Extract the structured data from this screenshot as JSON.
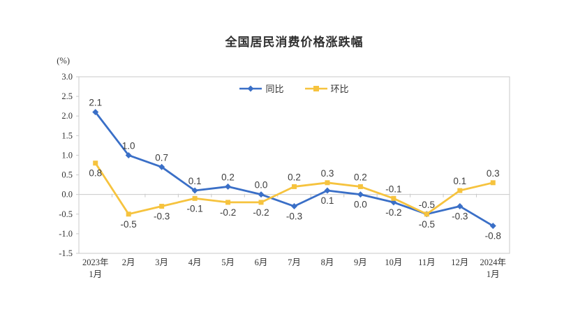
{
  "title": "全国居民消费价格涨跌幅",
  "y_axis_unit_label": "(%)",
  "legend": {
    "tongbi_label": "同比",
    "huanbi_label": "环比"
  },
  "colors": {
    "tongbi": "#3a6fc7",
    "huanbi": "#f6c33e",
    "axis": "#c9c9c9",
    "tick_text": "#333333",
    "data_label_text": "#3d3d3d"
  },
  "chart_data": {
    "type": "line",
    "title": "全国居民消费价格涨跌幅",
    "ylabel": "(%)",
    "xlabel": "",
    "categories": [
      "2023年\n1月",
      "2月",
      "3月",
      "4月",
      "5月",
      "6月",
      "7月",
      "8月",
      "9月",
      "10月",
      "11月",
      "12月",
      "2024年\n1月"
    ],
    "series": [
      {
        "name": "同比",
        "color": "#3a6fc7",
        "marker": "diamond",
        "values": [
          2.1,
          1.0,
          0.7,
          0.1,
          0.2,
          0.0,
          -0.3,
          0.1,
          0.0,
          -0.2,
          -0.5,
          -0.3,
          -0.8
        ],
        "label_side": [
          "above",
          "above",
          "above",
          "above",
          "above",
          "above",
          "below",
          "below",
          "below",
          "below",
          "below",
          "below",
          "below"
        ]
      },
      {
        "name": "环比",
        "color": "#f6c33e",
        "marker": "square",
        "values": [
          0.8,
          -0.5,
          -0.3,
          -0.1,
          -0.2,
          -0.2,
          0.2,
          0.3,
          0.2,
          -0.1,
          -0.5,
          0.1,
          0.3
        ],
        "label_side": [
          "below",
          "below",
          "below",
          "below",
          "below",
          "below",
          "above",
          "above",
          "above",
          "above",
          "above",
          "above",
          "above"
        ]
      }
    ],
    "ylim": [
      -1.5,
      3.0
    ],
    "ytick_step": 0.5,
    "grid": false,
    "zero_line": true,
    "legend_position": "top-center"
  }
}
